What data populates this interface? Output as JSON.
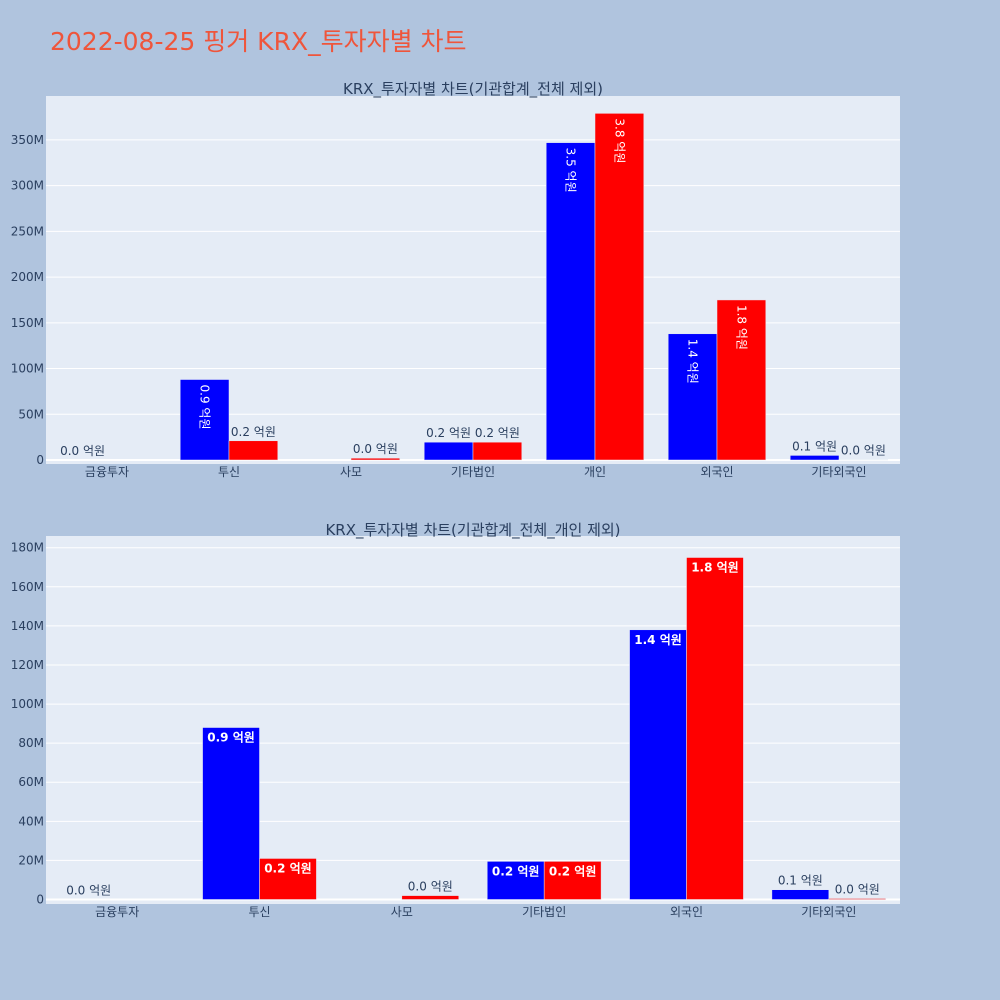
{
  "page_title": "2022-08-25 핑거 KRX_투자자별 차트",
  "colors": {
    "series_a": "#0000ff",
    "series_b": "#ff0000",
    "plot_bg": "#e5ecf6",
    "page_bg": "#b0c4de",
    "title": "#ef553b"
  },
  "chart_data": [
    {
      "type": "bar",
      "title": "KRX_투자자별 차트(기관합계_전체 제외)",
      "categories": [
        "금융투자",
        "투신",
        "사모",
        "기타법인",
        "개인",
        "외국인",
        "기타외국인"
      ],
      "series": [
        {
          "values": [
            0,
            88000000,
            0,
            19500000,
            347000000,
            138000000,
            5000000
          ],
          "labels": [
            "0.0 억원",
            "0.9 억원",
            "",
            "0.2 억원",
            "3.5 억원",
            "1.4 억원",
            "0.1 억원"
          ]
        },
        {
          "values": [
            0,
            21000000,
            2000000,
            19500000,
            379000000,
            175000000,
            500000
          ],
          "labels": [
            "",
            "0.2 억원",
            "0.0 억원",
            "0.2 억원",
            "3.8 억원",
            "1.8 억원",
            "0.0 억원"
          ]
        }
      ],
      "ylim": [
        0,
        398000000
      ],
      "yticks": [
        0,
        50000000,
        100000000,
        150000000,
        200000000,
        250000000,
        300000000,
        350000000
      ],
      "ytick_labels": [
        "0",
        "50M",
        "100M",
        "150M",
        "200M",
        "250M",
        "300M",
        "350M"
      ],
      "inside_label_style": "rotated",
      "grid": true
    },
    {
      "type": "bar",
      "title": "KRX_투자자별 차트(기관합계_전체_개인 제외)",
      "categories": [
        "금융투자",
        "투신",
        "사모",
        "기타법인",
        "외국인",
        "기타외국인"
      ],
      "series": [
        {
          "values": [
            0,
            88000000,
            0,
            19500000,
            138000000,
            5000000
          ],
          "labels": [
            "0.0 억원",
            "0.9 억원",
            "",
            "0.2 억원",
            "1.4 억원",
            "0.1 억원"
          ]
        },
        {
          "values": [
            0,
            21000000,
            2000000,
            19500000,
            175000000,
            500000
          ],
          "labels": [
            "",
            "0.2 억원",
            "0.0 억원",
            "0.2 억원",
            "1.8 억원",
            "0.0 억원"
          ]
        }
      ],
      "ylim": [
        0,
        186000000
      ],
      "yticks": [
        0,
        20000000,
        40000000,
        60000000,
        80000000,
        100000000,
        120000000,
        140000000,
        160000000,
        180000000
      ],
      "ytick_labels": [
        "0",
        "20M",
        "40M",
        "60M",
        "80M",
        "100M",
        "120M",
        "140M",
        "160M",
        "180M"
      ],
      "inside_label_style": "bold",
      "grid": true
    }
  ]
}
